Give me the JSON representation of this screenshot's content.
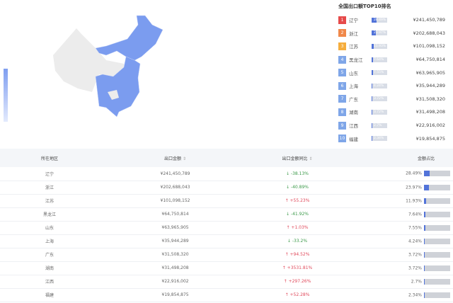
{
  "colors": {
    "accent": "#5273d9",
    "up": "#e0495b",
    "down": "#3c9a4a",
    "map_active": "#7b9cef",
    "map_inactive": "#ececec"
  },
  "rank": {
    "title": "全国出口额TOP10排名",
    "items": [
      {
        "n": "1",
        "name": "辽宁",
        "pct": "28.49%",
        "share": 28.49,
        "amount": "¥241,450,789",
        "color": "#e64a4a"
      },
      {
        "n": "2",
        "name": "浙江",
        "pct": "23.97%",
        "share": 23.97,
        "amount": "¥202,688,043",
        "color": "#f0884a"
      },
      {
        "n": "3",
        "name": "江苏",
        "pct": "11.93%",
        "share": 11.93,
        "amount": "¥101,098,152",
        "color": "#f5ad3d"
      },
      {
        "n": "4",
        "name": "黑龙江",
        "pct": "7.64%",
        "share": 7.64,
        "amount": "¥64,750,814",
        "color": "#7fa6e8"
      },
      {
        "n": "5",
        "name": "山东",
        "pct": "7.55%",
        "share": 7.55,
        "amount": "¥63,965,905",
        "color": "#7fa6e8"
      },
      {
        "n": "6",
        "name": "上海",
        "pct": "4.24%",
        "share": 4.24,
        "amount": "¥35,944,289",
        "color": "#7fa6e8"
      },
      {
        "n": "7",
        "name": "广东",
        "pct": "3.72%",
        "share": 3.72,
        "amount": "¥31,508,320",
        "color": "#7fa6e8"
      },
      {
        "n": "8",
        "name": "湖南",
        "pct": "3.72%",
        "share": 3.72,
        "amount": "¥31,498,208",
        "color": "#7fa6e8"
      },
      {
        "n": "9",
        "name": "江西",
        "pct": "2.7%",
        "share": 2.7,
        "amount": "¥22,916,002",
        "color": "#7fa6e8"
      },
      {
        "n": "10",
        "name": "福建",
        "pct": "2.34%",
        "share": 2.34,
        "amount": "¥19,854,875",
        "color": "#7fa6e8"
      }
    ]
  },
  "table": {
    "headers": [
      "所在地区",
      "出口金额",
      "出口金额同比",
      "金额占比"
    ],
    "sort_icon": "⇕",
    "rows": [
      {
        "region": "辽宁",
        "amount": "¥241,450,789",
        "yoy": "↓ -38.13%",
        "dir": "down",
        "share": "28.49%",
        "v": 28.49
      },
      {
        "region": "浙江",
        "amount": "¥202,688,043",
        "yoy": "↓ -40.89%",
        "dir": "down",
        "share": "23.97%",
        "v": 23.97
      },
      {
        "region": "江苏",
        "amount": "¥101,098,152",
        "yoy": "↑ +55.23%",
        "dir": "up",
        "share": "11.93%",
        "v": 11.93
      },
      {
        "region": "黑龙江",
        "amount": "¥64,750,814",
        "yoy": "↓ -41.92%",
        "dir": "down",
        "share": "7.64%",
        "v": 7.64
      },
      {
        "region": "山东",
        "amount": "¥63,965,905",
        "yoy": "↑ +1.03%",
        "dir": "up",
        "share": "7.55%",
        "v": 7.55
      },
      {
        "region": "上海",
        "amount": "¥35,944,289",
        "yoy": "↓ -33.2%",
        "dir": "down",
        "share": "4.24%",
        "v": 4.24
      },
      {
        "region": "广东",
        "amount": "¥31,508,320",
        "yoy": "↑ +94.52%",
        "dir": "up",
        "share": "3.72%",
        "v": 3.72
      },
      {
        "region": "湖南",
        "amount": "¥31,498,208",
        "yoy": "↑ +3531.81%",
        "dir": "up",
        "share": "3.72%",
        "v": 3.72
      },
      {
        "region": "江西",
        "amount": "¥22,916,002",
        "yoy": "↑ +297.26%",
        "dir": "up",
        "share": "2.7%",
        "v": 2.7
      },
      {
        "region": "福建",
        "amount": "¥19,854,875",
        "yoy": "↑ +52.28%",
        "dir": "up",
        "share": "2.34%",
        "v": 2.34
      }
    ]
  }
}
